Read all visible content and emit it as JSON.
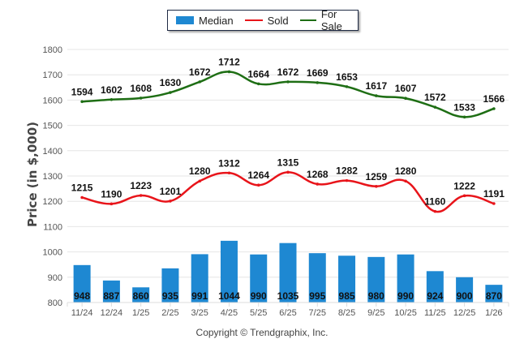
{
  "chart_data": {
    "type": "bar",
    "title": "",
    "xlabel": "",
    "ylabel": "Price (in $,000)",
    "ylim": [
      800,
      1800
    ],
    "yticks": [
      800,
      900,
      1000,
      1100,
      1200,
      1300,
      1400,
      1500,
      1600,
      1700,
      1800
    ],
    "grid": true,
    "legend_position": "top-center",
    "categories": [
      "11/24",
      "12/24",
      "1/25",
      "2/25",
      "3/25",
      "4/25",
      "5/25",
      "6/25",
      "7/25",
      "8/25",
      "9/25",
      "10/25",
      "11/25",
      "12/25",
      "1/26"
    ],
    "series": [
      {
        "name": "Median",
        "kind": "bar",
        "color": "#1e88d2",
        "values": [
          948,
          887,
          860,
          935,
          991,
          1044,
          990,
          1035,
          995,
          985,
          980,
          990,
          924,
          900,
          870
        ]
      },
      {
        "name": "Sold",
        "kind": "line",
        "color": "#e8141a",
        "values": [
          1215,
          1190,
          1223,
          1201,
          1280,
          1312,
          1264,
          1315,
          1268,
          1282,
          1259,
          1280,
          1160,
          1222,
          1191
        ]
      },
      {
        "name": "For Sale",
        "kind": "line",
        "color": "#1e6e14",
        "values": [
          1594,
          1602,
          1608,
          1630,
          1672,
          1712,
          1664,
          1672,
          1669,
          1653,
          1617,
          1607,
          1572,
          1533,
          1566
        ]
      }
    ]
  },
  "legend": {
    "items": [
      {
        "label": "Median",
        "color": "#1e88d2"
      },
      {
        "label": "Sold",
        "color": "#e8141a"
      },
      {
        "label": "For Sale",
        "color": "#1e6e14"
      }
    ]
  },
  "footer": "Copyright © Trendgraphix, Inc."
}
